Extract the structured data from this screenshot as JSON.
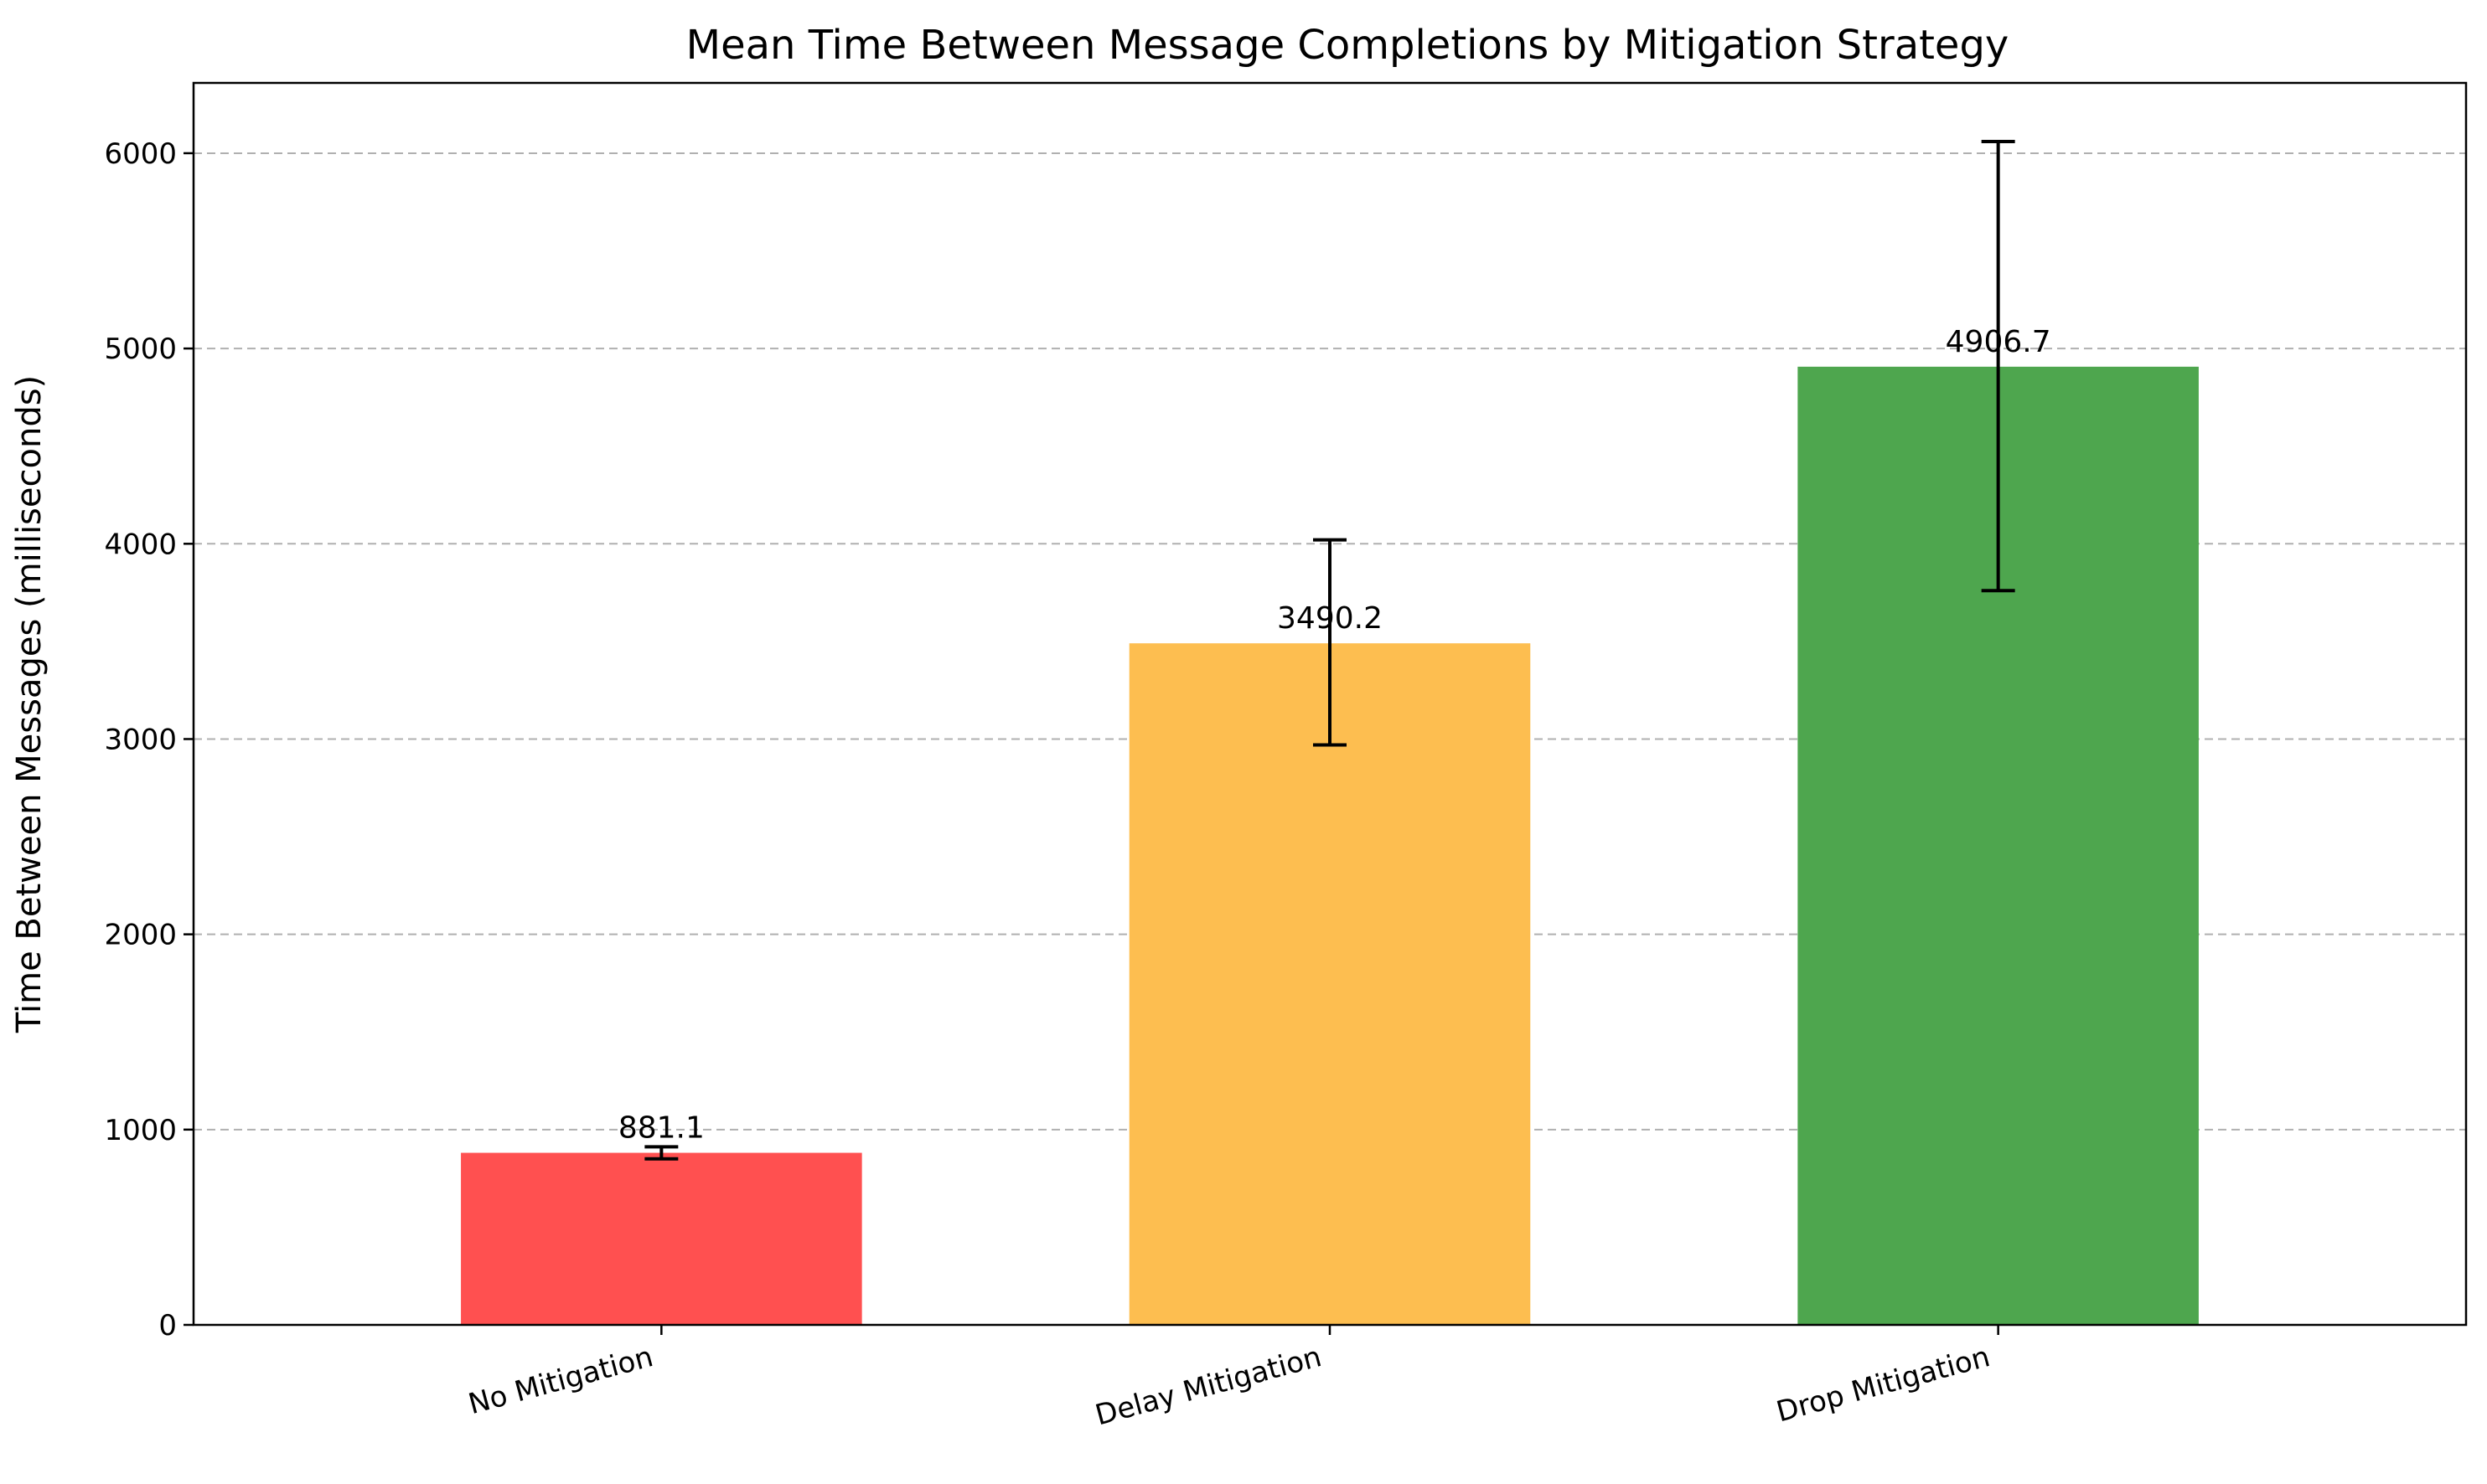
{
  "chart_data": {
    "type": "bar",
    "title": "Mean Time Between Message Completions by Mitigation Strategy",
    "xlabel": "",
    "ylabel": "Time Between Messages (milliseconds)",
    "categories": [
      "No Mitigation",
      "Delay Mitigation",
      "Drop Mitigation"
    ],
    "values": [
      881.1,
      3490.2,
      4906.7
    ],
    "value_labels": [
      "881.1",
      "3490.2",
      "4906.7"
    ],
    "error_low": [
      850,
      2970,
      3760
    ],
    "error_high": [
      912,
      4020,
      6060
    ],
    "colors": [
      "#ff5050",
      "#fdbe50",
      "#4ea64e"
    ],
    "ylim": [
      0,
      6360
    ],
    "yticks": [
      0,
      1000,
      2000,
      3000,
      4000,
      5000,
      6000
    ],
    "ytick_labels": [
      "0",
      "1000",
      "2000",
      "3000",
      "4000",
      "5000",
      "6000"
    ],
    "grid": "y-dashed",
    "legend": "none"
  }
}
